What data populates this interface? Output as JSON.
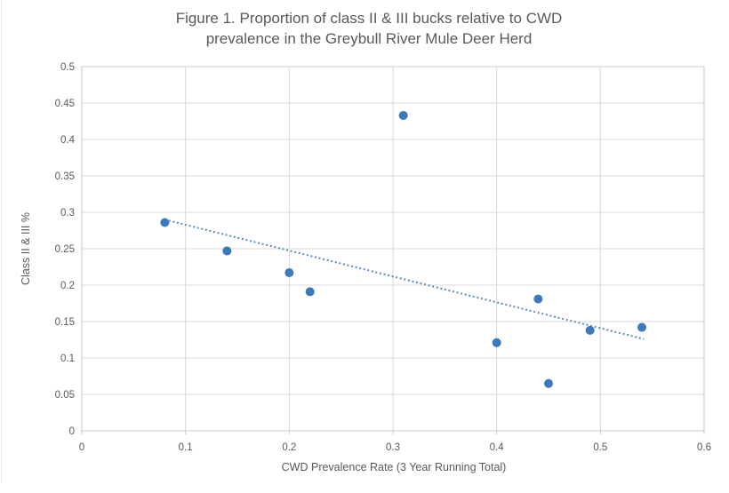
{
  "chart": {
    "title_lines": [
      "Figure 1. Proportion of class II & III bucks relative to CWD",
      "prevalence in the Greybull River Mule Deer Herd"
    ]
  },
  "chart_data": {
    "type": "scatter",
    "title": "Figure 1. Proportion of class II & III bucks relative to CWD prevalence in the Greybull River Mule Deer Herd",
    "xlabel": "CWD Prevalence Rate (3 Year Running Total)",
    "ylabel": "Class II & III %",
    "xlim": [
      0,
      0.6
    ],
    "ylim": [
      0,
      0.5
    ],
    "x_tick_labels": [
      "0",
      "0.1",
      "0.2",
      "0.3",
      "0.4",
      "0.5",
      "0.6"
    ],
    "y_tick_labels": [
      "0",
      "0.05",
      "0.1",
      "0.15",
      "0.2",
      "0.25",
      "0.3",
      "0.35",
      "0.4",
      "0.45",
      "0.5"
    ],
    "grid": true,
    "legend": false,
    "points": [
      {
        "x": 0.08,
        "y": 0.286
      },
      {
        "x": 0.14,
        "y": 0.247
      },
      {
        "x": 0.2,
        "y": 0.217
      },
      {
        "x": 0.22,
        "y": 0.191
      },
      {
        "x": 0.31,
        "y": 0.433
      },
      {
        "x": 0.4,
        "y": 0.121
      },
      {
        "x": 0.44,
        "y": 0.181
      },
      {
        "x": 0.45,
        "y": 0.065
      },
      {
        "x": 0.49,
        "y": 0.138
      },
      {
        "x": 0.54,
        "y": 0.142
      }
    ],
    "trendline": {
      "type": "linear",
      "style": "dotted",
      "x1": 0.08,
      "y1": 0.29,
      "x2": 0.542,
      "y2": 0.126
    },
    "colors": {
      "marker": "#3b7abd",
      "trendline": "#4385c6",
      "gridline": "#d9d9d9",
      "plot_border": "#c8c8c8",
      "text": "#595959"
    }
  }
}
